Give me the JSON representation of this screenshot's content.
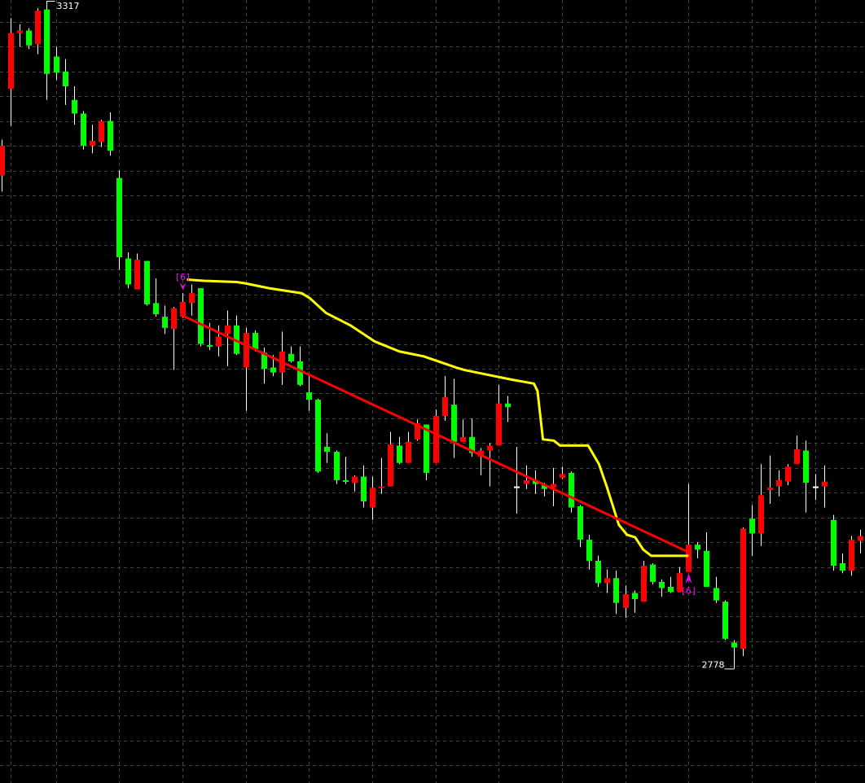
{
  "chart_data": {
    "type": "candlestick",
    "title": "",
    "xlabel": "",
    "ylabel": "",
    "ylim": [
      2686,
      3318
    ],
    "grid": true,
    "grid_step": 20,
    "colors": {
      "background": "#000000",
      "up": "#ff0000",
      "down": "#00ff00",
      "wick": "#ffffff",
      "grid": "#444444",
      "trend_line": "#ff0000",
      "indicator_line": "#ffff00",
      "marker": "#ff00ff"
    },
    "candles_ohlc": [
      [
        3176,
        3205,
        3163,
        3200
      ],
      [
        3246,
        3303,
        3216,
        3291
      ],
      [
        3291,
        3298,
        3280,
        3293
      ],
      [
        3293,
        3295,
        3278,
        3281
      ],
      [
        3282,
        3311,
        3274,
        3309
      ],
      [
        3310,
        3317,
        3237,
        3258
      ],
      [
        3272,
        3280,
        3253,
        3259
      ],
      [
        3260,
        3270,
        3233,
        3248
      ],
      [
        3237,
        3248,
        3217,
        3226
      ],
      [
        3226,
        3228,
        3197,
        3200
      ],
      [
        3200,
        3217,
        3194,
        3204
      ],
      [
        3203,
        3221,
        3199,
        3220
      ],
      [
        3220,
        3227,
        3192,
        3196
      ],
      [
        3174,
        3180,
        3100,
        3110
      ],
      [
        3109,
        3114,
        3085,
        3088
      ],
      [
        3084,
        3113,
        3084,
        3108
      ],
      [
        3107,
        3107,
        3071,
        3072
      ],
      [
        3073,
        3093,
        3062,
        3064
      ],
      [
        3062,
        3071,
        3048,
        3053
      ],
      [
        3052,
        3070,
        3019,
        3069
      ],
      [
        3062,
        3081,
        3061,
        3074
      ],
      [
        3073,
        3088,
        3063,
        3081
      ],
      [
        3085,
        3085,
        3038,
        3040
      ],
      [
        3039,
        3057,
        3035,
        3038
      ],
      [
        3038,
        3055,
        3030,
        3046
      ],
      [
        3048,
        3067,
        3022,
        3055
      ],
      [
        3055,
        3063,
        3031,
        3032
      ],
      [
        3021,
        3053,
        2986,
        3049
      ],
      [
        3049,
        3051,
        3034,
        3036
      ],
      [
        3033,
        3037,
        3008,
        3020
      ],
      [
        3021,
        3031,
        3014,
        3017
      ],
      [
        3017,
        3050,
        3007,
        3034
      ],
      [
        3032,
        3038,
        3025,
        3026
      ],
      [
        3026,
        3038,
        3006,
        3007
      ],
      [
        3001,
        3015,
        2986,
        2995
      ],
      [
        2995,
        2996,
        2936,
        2937
      ],
      [
        2957,
        2968,
        2944,
        2953
      ],
      [
        2953,
        2954,
        2927,
        2930
      ],
      [
        2930,
        2949,
        2927,
        2929
      ],
      [
        2928,
        2934,
        2921,
        2933
      ],
      [
        2933,
        2942,
        2908,
        2913
      ],
      [
        2908,
        2933,
        2898,
        2924
      ],
      [
        2924,
        2948,
        2919,
        2925
      ],
      [
        2925,
        2969,
        2925,
        2959
      ],
      [
        2958,
        2965,
        2943,
        2944
      ],
      [
        2944,
        2969,
        2944,
        2961
      ],
      [
        2963,
        2979,
        2962,
        2976
      ],
      [
        2975,
        2975,
        2930,
        2936
      ],
      [
        2944,
        2987,
        2944,
        2982
      ],
      [
        2982,
        3014,
        2978,
        2997
      ],
      [
        2991,
        3012,
        2948,
        2961
      ],
      [
        2961,
        2979,
        2961,
        2965
      ],
      [
        2965,
        2980,
        2949,
        2952
      ],
      [
        2949,
        2956,
        2934,
        2954
      ],
      [
        2954,
        2960,
        2925,
        2958
      ],
      [
        2958,
        3007,
        2958,
        2992
      ],
      [
        2992,
        2998,
        2977,
        2989
      ],
      [
        2925,
        2957,
        2903,
        2925
      ],
      [
        2927,
        2942,
        2923,
        2930
      ],
      [
        2930,
        2938,
        2919,
        2927
      ],
      [
        2926,
        2928,
        2917,
        2923
      ],
      [
        2924,
        2940,
        2909,
        2927
      ],
      [
        2932,
        2941,
        2931,
        2935
      ],
      [
        2936,
        2937,
        2904,
        2908
      ],
      [
        2909,
        2910,
        2876,
        2882
      ],
      [
        2882,
        2886,
        2858,
        2865
      ],
      [
        2865,
        2869,
        2844,
        2847
      ],
      [
        2847,
        2858,
        2839,
        2851
      ],
      [
        2851,
        2857,
        2822,
        2831
      ],
      [
        2827,
        2845,
        2819,
        2838
      ],
      [
        2839,
        2841,
        2823,
        2834
      ],
      [
        2832,
        2865,
        2832,
        2861
      ],
      [
        2862,
        2863,
        2846,
        2848
      ],
      [
        2848,
        2850,
        2836,
        2843
      ],
      [
        2844,
        2852,
        2839,
        2840
      ],
      [
        2840,
        2860,
        2840,
        2855
      ],
      [
        2856,
        2927,
        2856,
        2878
      ],
      [
        2878,
        2880,
        2867,
        2874
      ],
      [
        2873,
        2888,
        2844,
        2844
      ],
      [
        2843,
        2852,
        2831,
        2833
      ],
      [
        2832,
        2833,
        2801,
        2802
      ],
      [
        2799,
        2801,
        2778,
        2795
      ],
      [
        2794,
        2892,
        2788,
        2891
      ],
      [
        2899,
        2910,
        2869,
        2887
      ],
      [
        2887,
        2943,
        2877,
        2918
      ],
      [
        2922,
        2950,
        2911,
        2924
      ],
      [
        2925,
        2938,
        2917,
        2930
      ],
      [
        2929,
        2943,
        2926,
        2941
      ],
      [
        2943,
        2966,
        2943,
        2955
      ],
      [
        2954,
        2962,
        2904,
        2928
      ],
      [
        2925,
        2935,
        2914,
        2925
      ],
      [
        2925,
        2942,
        2908,
        2929
      ],
      [
        2898,
        2902,
        2857,
        2861
      ],
      [
        2863,
        2871,
        2855,
        2857
      ],
      [
        2857,
        2885,
        2853,
        2882
      ],
      [
        2881,
        2890,
        2871,
        2885
      ]
    ],
    "indicator_line": [
      [
        20.5,
        3092
      ],
      [
        22.4,
        3091
      ],
      [
        26,
        3090
      ],
      [
        26.9,
        3089
      ],
      [
        29.6,
        3085
      ],
      [
        33.2,
        3081
      ],
      [
        34.1,
        3077
      ],
      [
        35.9,
        3065
      ],
      [
        38.6,
        3055
      ],
      [
        41.3,
        3042
      ],
      [
        44,
        3034
      ],
      [
        46.7,
        3030
      ],
      [
        50.3,
        3021
      ],
      [
        51.2,
        3019
      ],
      [
        53.9,
        3015
      ],
      [
        56.6,
        3011
      ],
      [
        58.9,
        3008
      ],
      [
        59.3,
        3002
      ],
      [
        59.9,
        2963
      ],
      [
        61.1,
        2962
      ],
      [
        61.8,
        2958
      ],
      [
        64.9,
        2958
      ],
      [
        66.1,
        2943
      ],
      [
        67,
        2924
      ],
      [
        68.3,
        2894
      ],
      [
        69.2,
        2886
      ],
      [
        70.1,
        2884
      ],
      [
        71,
        2874
      ],
      [
        71.9,
        2869
      ],
      [
        76,
        2869
      ]
    ],
    "trend_line": [
      [
        20,
        3063
      ],
      [
        76,
        2872
      ]
    ],
    "markers": [
      {
        "index": 20,
        "text": "[6]",
        "position": "above",
        "arrow": "down"
      },
      {
        "index": 76,
        "text": "[6]",
        "position": "below",
        "arrow": "up"
      }
    ],
    "price_labels": [
      {
        "index": 5,
        "price": 3317,
        "text": "3317",
        "side": "right"
      },
      {
        "index": 81,
        "price": 2778,
        "text": "2778",
        "side": "left"
      }
    ]
  }
}
